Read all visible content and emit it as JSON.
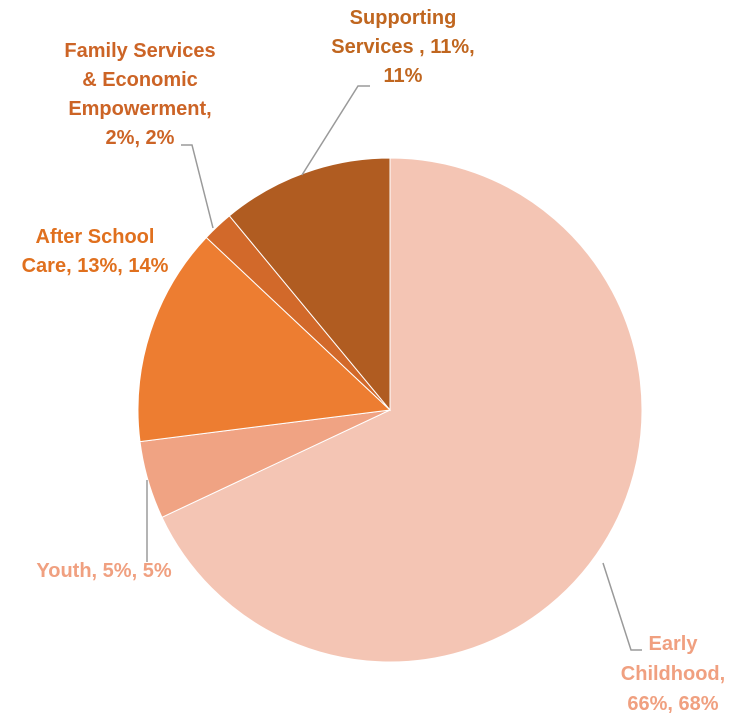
{
  "chart_data": {
    "type": "pie",
    "title": "",
    "start_angle_deg": 0,
    "direction": "clockwise",
    "legend": "none",
    "series": [
      {
        "values": [
          68,
          5,
          14,
          2,
          11
        ],
        "slices": [
          {
            "key": "early-childhood",
            "name": "Early Childhood",
            "value": 68,
            "color": "#F4C5B4",
            "label_color": "#F0A080",
            "label_lines": [
              "Early",
              "Childhood,",
              "66%, 68%"
            ]
          },
          {
            "key": "youth",
            "name": "Youth",
            "value": 5,
            "color": "#F0A383",
            "label_color": "#F0A080",
            "label_lines": [
              "Youth, 5%, 5%"
            ]
          },
          {
            "key": "after-school-care",
            "name": "After School Care",
            "value": 14,
            "color": "#ED7D31",
            "label_color": "#E0701E",
            "label_lines": [
              "After School",
              "Care, 13%, 14%"
            ]
          },
          {
            "key": "family-services",
            "name": "Family Services & Economic Empowerment",
            "value": 2,
            "color": "#D2692A",
            "label_color": "#CC6426",
            "label_lines": [
              "Family Services",
              "& Economic",
              "Empowerment,",
              "2%, 2%"
            ]
          },
          {
            "key": "supporting-services",
            "name": "Supporting Services",
            "value": 11,
            "color": "#B05C21",
            "label_color": "#C0661F",
            "label_lines": [
              "Supporting",
              "Services , 11%,",
              "11%"
            ]
          }
        ]
      }
    ]
  }
}
